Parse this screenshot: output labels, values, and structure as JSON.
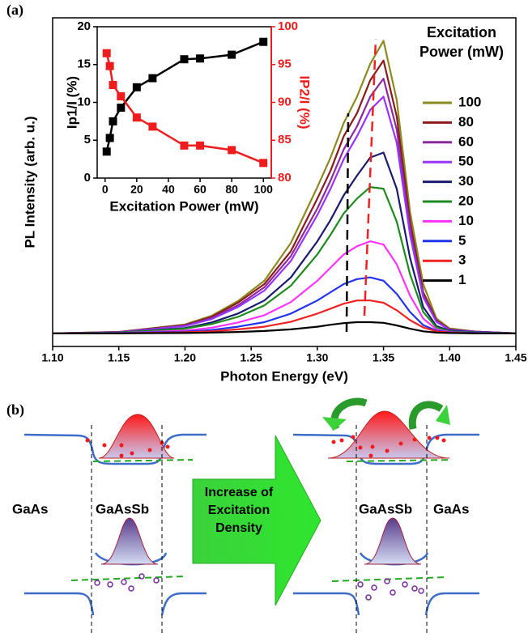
{
  "panel_labels": [
    "(a)",
    "(b)"
  ],
  "chart_data": [
    {
      "type": "line",
      "x_label": "Photon Energy (eV)",
      "y_label": "PL Intensity (arb. u.)",
      "legend_title": "Excitation Power (mW)",
      "xlim": [
        1.1,
        1.45
      ],
      "xticks": [
        {
          "value": 1.1,
          "label": "1.10"
        },
        {
          "value": 1.15,
          "label": "1.15"
        },
        {
          "value": 1.2,
          "label": "1.20"
        },
        {
          "value": 1.25,
          "label": "1.25"
        },
        {
          "value": 1.3,
          "label": "1.30"
        },
        {
          "value": 1.35,
          "label": "1.35"
        },
        {
          "value": 1.4,
          "label": "1.40"
        },
        {
          "value": 1.45,
          "label": "1.45"
        }
      ],
      "ylim": [
        0,
        100
      ],
      "x": [
        1.1,
        1.15,
        1.2,
        1.22,
        1.24,
        1.26,
        1.28,
        1.3,
        1.31,
        1.32,
        1.33,
        1.34,
        1.35,
        1.36,
        1.37,
        1.38,
        1.39,
        1.4,
        1.42,
        1.45
      ],
      "series": [
        {
          "name": "100",
          "color": "#8c8a1e",
          "values": [
            4,
            4.4,
            6.7,
            9.3,
            13.8,
            20,
            31.5,
            48.5,
            57.5,
            68,
            76,
            86,
            93,
            75,
            41,
            19,
            8.5,
            5.5,
            4.5,
            4
          ]
        },
        {
          "name": "80",
          "color": "#8b1a1a",
          "values": [
            4,
            4.4,
            6.5,
            9,
            13.3,
            19,
            29,
            45,
            53.5,
            64,
            71,
            81,
            87,
            70,
            38,
            16.5,
            8,
            5.2,
            4.5,
            4
          ]
        },
        {
          "name": "60",
          "color": "#8b2a9b",
          "values": [
            4,
            4.3,
            6.3,
            8.6,
            12.5,
            18,
            27.5,
            42,
            50.5,
            60,
            67,
            76,
            81.5,
            66,
            36,
            15.5,
            7.7,
            5.1,
            4.5,
            4
          ]
        },
        {
          "name": "50",
          "color": "#9933ff",
          "values": [
            4,
            4.3,
            6.2,
            8.3,
            12,
            17,
            26,
            40,
            48,
            57,
            64,
            72,
            76,
            62,
            34,
            15,
            7.5,
            5,
            4.4,
            4
          ]
        },
        {
          "name": "30",
          "color": "#1a1a6e",
          "values": [
            4,
            4.2,
            5.6,
            7.3,
            10,
            14,
            21,
            32,
            38.5,
            46,
            52,
            57.5,
            59,
            48,
            27,
            12,
            6.2,
            4.8,
            4.3,
            4
          ]
        },
        {
          "name": "20",
          "color": "#1e8b1e",
          "values": [
            4,
            4.2,
            5.4,
            6.8,
            9,
            12.5,
            18.5,
            28,
            34,
            40.5,
            45,
            48.5,
            48,
            38,
            22,
            10.5,
            5.8,
            4.6,
            4.2,
            4
          ]
        },
        {
          "name": "10",
          "color": "#ff33ff",
          "values": [
            4,
            4.1,
            4.8,
            5.7,
            7.3,
            9.5,
            13.5,
            20,
            24,
            28,
            30.5,
            32,
            31,
            25,
            15.5,
            8.5,
            5.2,
            4.4,
            4.1,
            4
          ]
        },
        {
          "name": "5",
          "color": "#2233ee",
          "values": [
            4,
            4.1,
            4.5,
            5,
            6,
            7.4,
            10,
            14,
            16.5,
            19,
            20.5,
            21,
            20,
            16,
            10.5,
            6.5,
            4.8,
            4.3,
            4.1,
            4
          ]
        },
        {
          "name": "3",
          "color": "#ee2222",
          "values": [
            4,
            4,
            4.3,
            4.6,
            5.2,
            6,
            7.5,
            10,
            11.5,
            13,
            14,
            14,
            13.3,
            11,
            8,
            5.8,
            4.6,
            4.2,
            4,
            4
          ]
        },
        {
          "name": "1",
          "color": "#000000",
          "values": [
            4,
            4,
            4.1,
            4.2,
            4.4,
            4.7,
            5.2,
            6,
            6.6,
            7.1,
            7.4,
            7.4,
            7.2,
            6.4,
            5.4,
            4.6,
            4.2,
            4.1,
            4,
            4
          ]
        }
      ]
    },
    {
      "type": "scatter-line",
      "x_label": "Excitation Power (mW)",
      "y_label": "Ip1/I (%)",
      "y2_label": "IP2/I (%)",
      "xlim": [
        -5,
        105
      ],
      "xticks": [
        0,
        20,
        40,
        60,
        80,
        100
      ],
      "ylim": [
        0,
        20
      ],
      "yticks": [
        0,
        5,
        10,
        15,
        20
      ],
      "y2lim": [
        80,
        100
      ],
      "y2ticks": [
        80,
        85,
        90,
        95,
        100
      ],
      "x": [
        1,
        3,
        5,
        10,
        20,
        30,
        50,
        60,
        80,
        100
      ],
      "series": [
        {
          "color": "#000000",
          "values": [
            3.5,
            5.3,
            7.5,
            9.3,
            12,
            13.2,
            15.7,
            15.8,
            16.3,
            18
          ]
        },
        {
          "color": "#ee1c1c",
          "axis": "y2",
          "values": [
            96.5,
            94.8,
            92.3,
            90.8,
            88,
            86.8,
            84.3,
            84.3,
            83.7,
            82
          ]
        }
      ]
    }
  ],
  "diagram": {
    "left_labels": [
      "GaAs",
      "GaAsSb"
    ],
    "arrow_text": "Increase of Excitation Density",
    "right_labels": [
      "GaAsSb",
      "GaAs"
    ]
  }
}
